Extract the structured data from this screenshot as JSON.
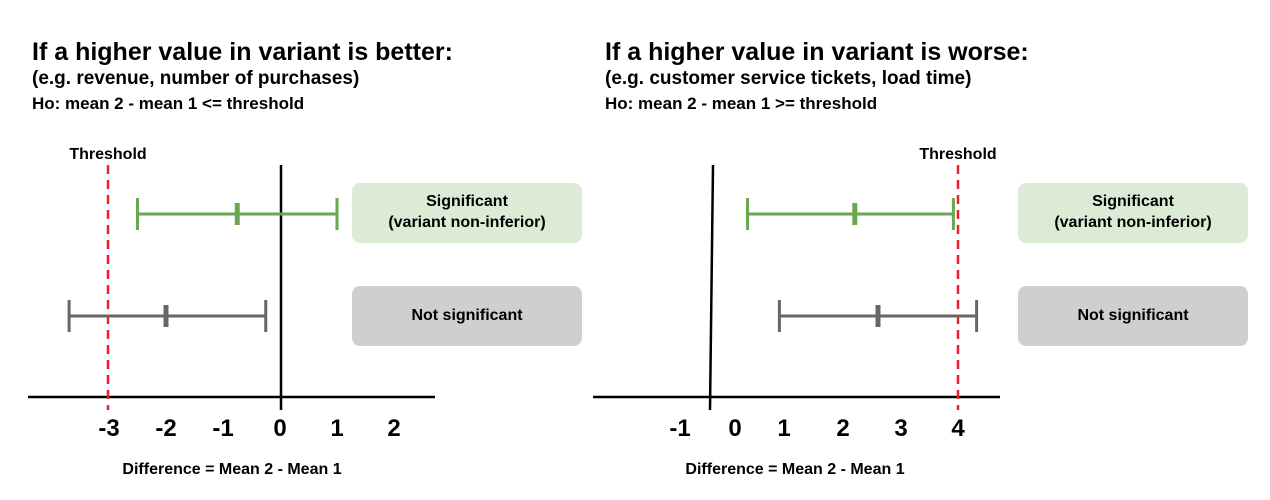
{
  "colors": {
    "significant_ci": "#6aa84f",
    "not_significant_ci": "#666666",
    "threshold_line": "#e8222a",
    "axis": "#000000",
    "significant_box": "#dcebd6",
    "not_significant_box": "#cfcfcf"
  },
  "left": {
    "title": "If a higher value in variant is better:",
    "subtitle": "(e.g. revenue, number of purchases)",
    "hypothesis": "Ho: mean 2 - mean 1 <= threshold",
    "threshold_label": "Threshold",
    "xlabel": "Difference = Mean 2 - Mean 1",
    "box_significant_line1": "Significant",
    "box_significant_line2": "(variant non-inferior)",
    "box_not_significant": "Not significant",
    "ticks": [
      "-3",
      "-2",
      "-1",
      "0",
      "1",
      "2"
    ]
  },
  "right": {
    "title": "If a higher value in variant is worse:",
    "subtitle": "(e.g. customer service tickets, load time)",
    "hypothesis": "Ho: mean 2 - mean 1 >= threshold",
    "threshold_label": "Threshold",
    "xlabel": "Difference = Mean 2 - Mean 1",
    "box_significant_line1": "Significant",
    "box_significant_line2": "(variant non-inferior)",
    "box_not_significant": "Not significant",
    "ticks": [
      "-1",
      "0",
      "1",
      "2",
      "3",
      "4"
    ]
  },
  "chart_data": [
    {
      "type": "scatter",
      "title": "If a higher value in variant is better:",
      "xlabel": "Difference = Mean 2 - Mean 1",
      "threshold": -3,
      "intervals": [
        {
          "status": "Significant (variant non-inferior)",
          "low": -2.5,
          "mean": -0.75,
          "high": 1.0
        },
        {
          "status": "Not significant",
          "low": -3.7,
          "mean": -2.0,
          "high": -0.25
        }
      ]
    },
    {
      "type": "scatter",
      "title": "If a higher value in variant is worse:",
      "xlabel": "Difference = Mean 2 - Mean 1",
      "threshold": 4,
      "intervals": [
        {
          "status": "Significant (variant non-inferior)",
          "low": 0.25,
          "mean": 2.1,
          "high": 3.8
        },
        {
          "status": "Not significant",
          "low": 0.8,
          "mean": 2.5,
          "high": 4.2
        }
      ]
    }
  ]
}
